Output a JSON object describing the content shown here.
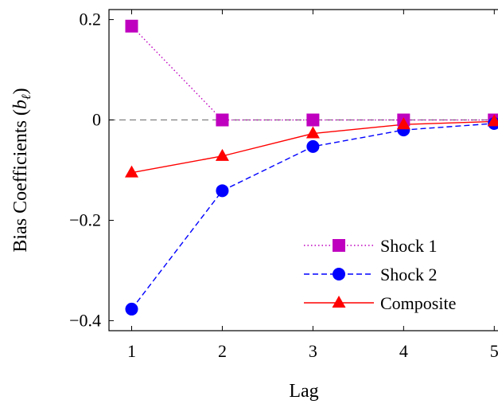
{
  "chart_data": {
    "type": "line",
    "xlabel": "Lag",
    "ylabel": "Bias Coefficients (bℓ)",
    "ylabel_main": "Bias Coefficients (",
    "ylabel_var": "b",
    "ylabel_sub": "ℓ",
    "ylabel_close": ")",
    "x": [
      1,
      2,
      3,
      4,
      5
    ],
    "x_ticks": [
      "1",
      "2",
      "3",
      "4",
      "5"
    ],
    "y_ticks": [
      {
        "value": 0.2,
        "label": "0.2"
      },
      {
        "value": 0,
        "label": "0"
      },
      {
        "value": -0.2,
        "label": "−0.2"
      },
      {
        "value": -0.4,
        "label": "−0.4"
      }
    ],
    "xlim": [
      0.75,
      5.05
    ],
    "ylim": [
      -0.42,
      0.22
    ],
    "reference_line": {
      "y": 0,
      "style": "dashed",
      "color": "#808080"
    },
    "grid": false,
    "legend_position": "bottom-right",
    "series": [
      {
        "name": "Shock 1",
        "values": [
          0.187,
          0.0,
          0.0,
          0.0,
          0.0
        ],
        "color": "#bf00bf",
        "line": "dotted",
        "marker": "square"
      },
      {
        "name": "Shock 2",
        "values": [
          -0.377,
          -0.141,
          -0.053,
          -0.02,
          -0.007
        ],
        "color": "#0000ff",
        "line": "dashed",
        "marker": "circle"
      },
      {
        "name": "Composite",
        "values": [
          -0.105,
          -0.072,
          -0.027,
          -0.009,
          -0.003
        ],
        "color": "#ff0000",
        "line": "solid",
        "marker": "triangle"
      }
    ]
  }
}
